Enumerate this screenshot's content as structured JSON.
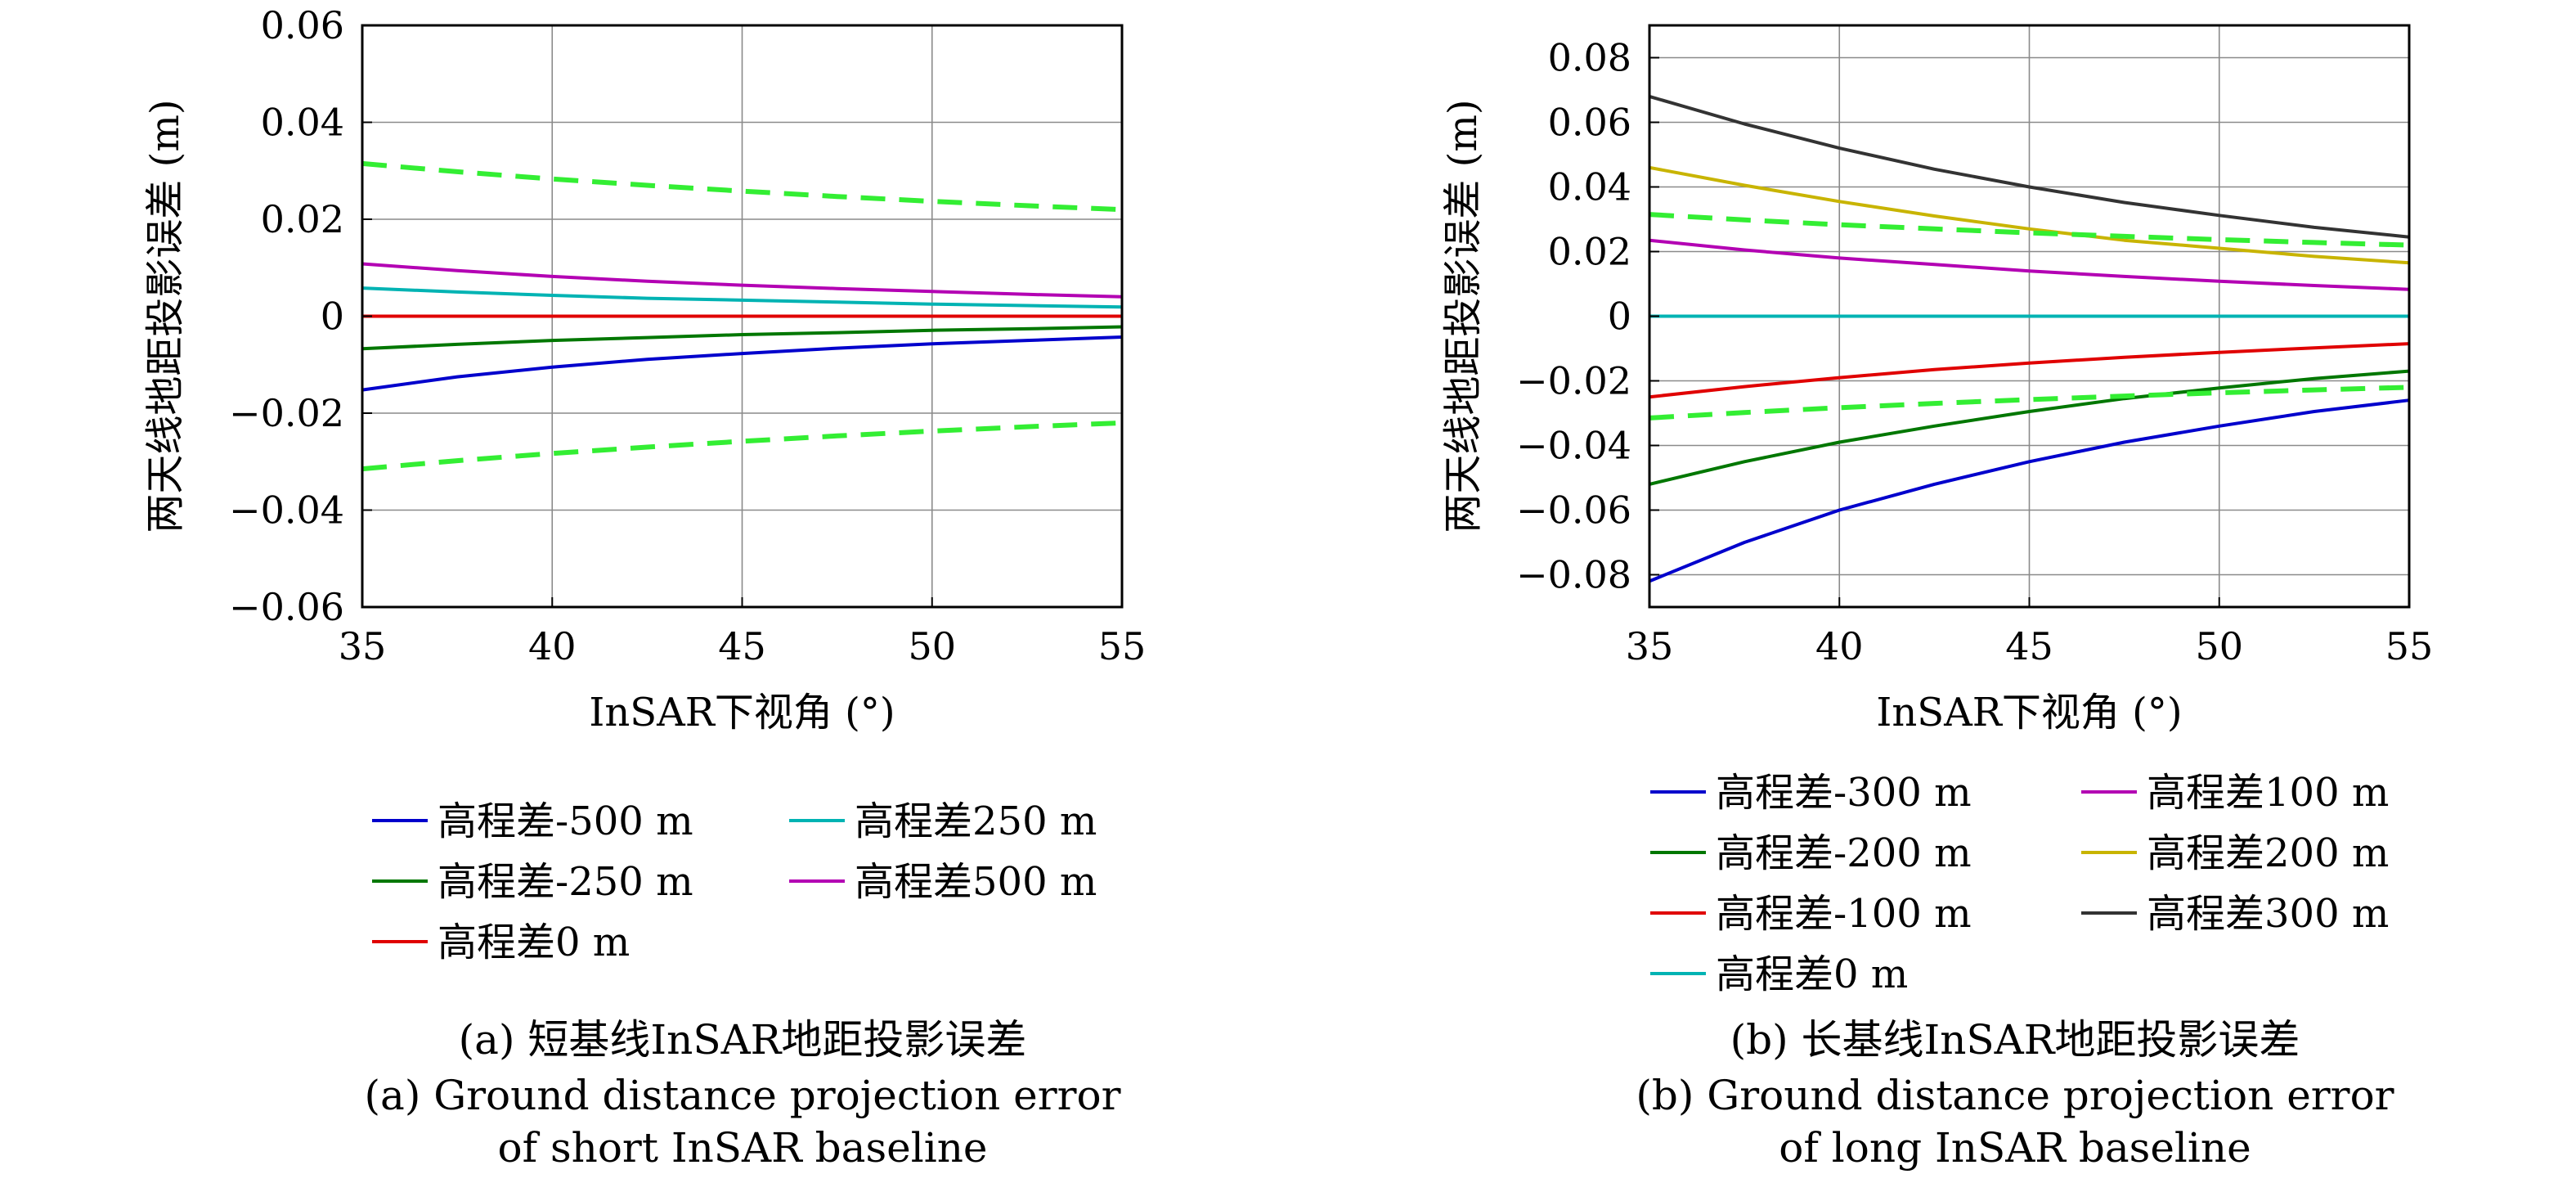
{
  "chart_data": [
    {
      "type": "line",
      "panel": "a",
      "xlabel": "InSAR下视角 (°)",
      "ylabel": "两天线地距投影误差 (m)",
      "xlim": [
        35,
        55
      ],
      "ylim": [
        -0.06,
        0.06
      ],
      "xticks": [
        35,
        40,
        45,
        50,
        55
      ],
      "yticks": [
        -0.06,
        -0.04,
        -0.02,
        0,
        0.02,
        0.04,
        0.06
      ],
      "ytick_labels": [
        "−0.06",
        "−0.04",
        "−0.02",
        "0",
        "0.02",
        "0.04",
        "0.06"
      ],
      "grid": true,
      "x": [
        35,
        37.5,
        40,
        42.5,
        45,
        47.5,
        50,
        52.5,
        55
      ],
      "series": [
        {
          "name": "高程差-500 m",
          "color": "#0000cc",
          "dashed": false,
          "values": [
            -0.0152,
            -0.0125,
            -0.0105,
            -0.0089,
            -0.0077,
            -0.0066,
            -0.0057,
            -0.005,
            -0.0043
          ]
        },
        {
          "name": "高程差250 m",
          "color": "#00b3b3",
          "dashed": false,
          "values": [
            0.0058,
            0.005,
            0.0043,
            0.0037,
            0.0033,
            0.0029,
            0.0025,
            0.0022,
            0.0019
          ]
        },
        {
          "name": "高程差-250 m",
          "color": "#007700",
          "dashed": false,
          "values": [
            -0.0067,
            -0.0058,
            -0.005,
            -0.0044,
            -0.0038,
            -0.0034,
            -0.0029,
            -0.0026,
            -0.0022
          ]
        },
        {
          "name": "高程差500 m",
          "color": "#b300b3",
          "dashed": false,
          "values": [
            0.0108,
            0.0094,
            0.0082,
            0.0072,
            0.0064,
            0.0057,
            0.0051,
            0.0045,
            0.004
          ]
        },
        {
          "name": "高程差0 m",
          "color": "#e00000",
          "dashed": false,
          "values": [
            0,
            0,
            0,
            0,
            0,
            0,
            0,
            0,
            0
          ]
        },
        {
          "name": "",
          "color": "#33ee33",
          "dashed": true,
          "values": [
            0.0315,
            0.0298,
            0.0283,
            0.027,
            0.0258,
            0.0247,
            0.0237,
            0.0228,
            0.022
          ]
        },
        {
          "name": "",
          "color": "#33ee33",
          "dashed": true,
          "values": [
            -0.0315,
            -0.0298,
            -0.0283,
            -0.027,
            -0.0258,
            -0.0247,
            -0.0237,
            -0.0228,
            -0.022
          ]
        }
      ],
      "legend_columns": 2,
      "caption_cn": "(a) 短基线InSAR地距投影误差",
      "caption_en_1": "(a) Ground distance projection error",
      "caption_en_2": "of short InSAR baseline"
    },
    {
      "type": "line",
      "panel": "b",
      "xlabel": "InSAR下视角 (°)",
      "ylabel": "两天线地距投影误差 (m)",
      "xlim": [
        35,
        55
      ],
      "ylim": [
        -0.09,
        0.09
      ],
      "xticks": [
        35,
        40,
        45,
        50,
        55
      ],
      "yticks": [
        -0.08,
        -0.06,
        -0.04,
        -0.02,
        0,
        0.02,
        0.04,
        0.06,
        0.08
      ],
      "ytick_labels": [
        "−0.08",
        "−0.06",
        "−0.04",
        "−0.02",
        "0",
        "0.02",
        "0.04",
        "0.06",
        "0.08"
      ],
      "grid": true,
      "x": [
        35,
        37.5,
        40,
        42.5,
        45,
        47.5,
        50,
        52.5,
        55
      ],
      "series": [
        {
          "name": "高程差-300 m",
          "color": "#0000cc",
          "dashed": false,
          "values": [
            -0.082,
            -0.07,
            -0.06,
            -0.052,
            -0.045,
            -0.039,
            -0.034,
            -0.0295,
            -0.026
          ]
        },
        {
          "name": "高程差100 m",
          "color": "#b300b3",
          "dashed": false,
          "values": [
            0.0235,
            0.0205,
            0.018,
            0.016,
            0.014,
            0.0123,
            0.0108,
            0.0095,
            0.0083
          ]
        },
        {
          "name": "高程差-200 m",
          "color": "#007700",
          "dashed": false,
          "values": [
            -0.052,
            -0.045,
            -0.039,
            -0.034,
            -0.0295,
            -0.0255,
            -0.0222,
            -0.0193,
            -0.017
          ]
        },
        {
          "name": "高程差200 m",
          "color": "#c8b400",
          "dashed": false,
          "values": [
            0.046,
            0.0405,
            0.0355,
            0.031,
            0.027,
            0.0235,
            0.021,
            0.0185,
            0.0165
          ]
        },
        {
          "name": "高程差-100 m",
          "color": "#e00000",
          "dashed": false,
          "values": [
            -0.025,
            -0.0218,
            -0.019,
            -0.0165,
            -0.0145,
            -0.0127,
            -0.0112,
            -0.0098,
            -0.0085
          ]
        },
        {
          "name": "高程差300 m",
          "color": "#333333",
          "dashed": false,
          "values": [
            0.068,
            0.0595,
            0.052,
            0.0455,
            0.04,
            0.0352,
            0.0312,
            0.0275,
            0.0245
          ]
        },
        {
          "name": "高程差0 m",
          "color": "#00b3b3",
          "dashed": false,
          "values": [
            0,
            0,
            0,
            0,
            0,
            0,
            0,
            0,
            0
          ]
        },
        {
          "name": "",
          "color": "#33ee33",
          "dashed": true,
          "values": [
            0.0315,
            0.0298,
            0.0283,
            0.027,
            0.0258,
            0.0247,
            0.0237,
            0.0228,
            0.022
          ]
        },
        {
          "name": "",
          "color": "#33ee33",
          "dashed": true,
          "values": [
            -0.0315,
            -0.0298,
            -0.0283,
            -0.027,
            -0.0258,
            -0.0247,
            -0.0237,
            -0.0228,
            -0.022
          ]
        }
      ],
      "legend_columns": 2,
      "caption_cn": "(b) 长基线InSAR地距投影误差",
      "caption_en_1": "(b) Ground distance projection error",
      "caption_en_2": "of long InSAR baseline"
    }
  ]
}
